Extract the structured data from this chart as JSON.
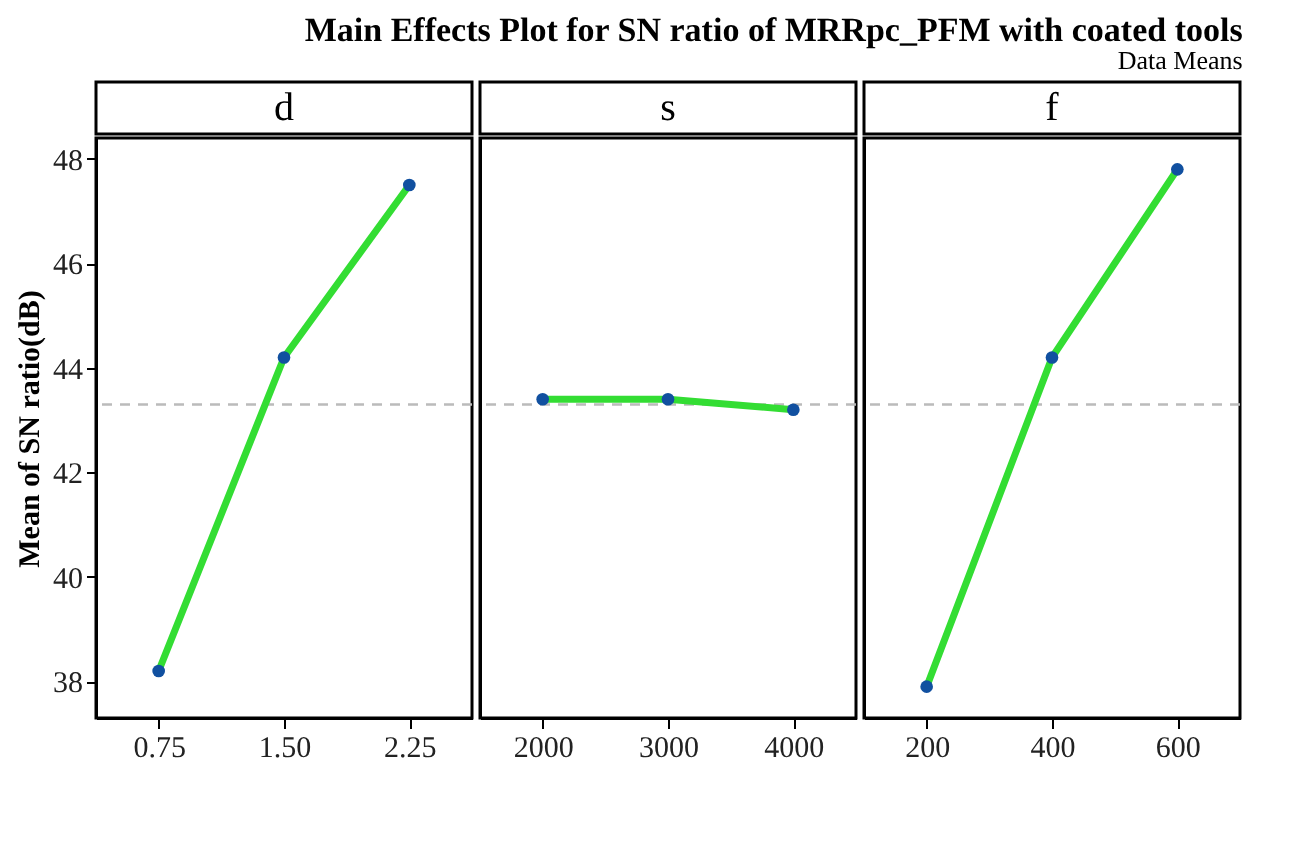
{
  "chart_data": [
    {
      "type": "line",
      "title": "d",
      "annotations": [
        "Main Effects Plot for SN ratio of MRRpc_PFM with coated tools",
        "Data Means"
      ],
      "ylabel": "Mean of SN ratio(dB)",
      "categories": [
        "0.75",
        "1.50",
        "2.25"
      ],
      "series": [
        {
          "color": "#33dd33",
          "values": [
            38.2,
            44.2,
            47.5
          ]
        }
      ],
      "ylim": [
        37.3,
        48.4
      ],
      "yticks": [
        38,
        40,
        42,
        44,
        46,
        48
      ],
      "grid": false,
      "marker": "circle",
      "line_style": "solid",
      "ref_lines": [
        {
          "axis": "y",
          "value": 43.3,
          "color": "#bbbbbb",
          "line_style": "dashed"
        }
      ]
    },
    {
      "type": "line",
      "title": "s",
      "categories": [
        "2000",
        "3000",
        "4000"
      ],
      "series": [
        {
          "color": "#33dd33",
          "values": [
            43.4,
            43.4,
            43.2
          ]
        }
      ],
      "ylim": [
        37.3,
        48.4
      ],
      "tick_labels": "x",
      "grid": false,
      "marker": "circle",
      "line_style": "solid",
      "ref_lines": [
        {
          "axis": "y",
          "value": 43.3,
          "color": "#bbbbbb",
          "line_style": "dashed"
        }
      ]
    },
    {
      "type": "line",
      "title": "f",
      "categories": [
        "200",
        "400",
        "600"
      ],
      "series": [
        {
          "color": "#33dd33",
          "values": [
            37.9,
            44.2,
            47.8
          ]
        }
      ],
      "ylim": [
        37.3,
        48.4
      ],
      "tick_labels": "x",
      "grid": false,
      "marker": "circle",
      "line_style": "solid",
      "ref_lines": [
        {
          "axis": "y",
          "value": 43.3,
          "color": "#bbbbbb",
          "line_style": "dashed"
        }
      ]
    }
  ]
}
